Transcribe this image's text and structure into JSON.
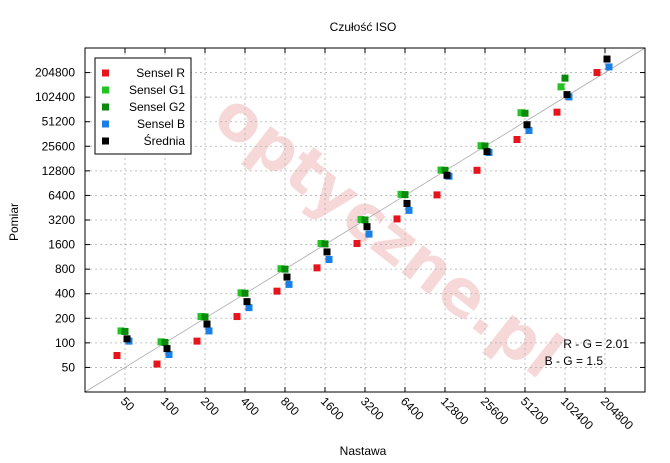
{
  "chart_data": {
    "type": "scatter",
    "title": "Czułość ISO",
    "xlabel": "Nastawa",
    "ylabel": "Pomiar",
    "x_ticks": [
      50,
      100,
      200,
      400,
      800,
      1600,
      3200,
      6400,
      12800,
      25600,
      51200,
      102400,
      204800
    ],
    "y_ticks": [
      50,
      100,
      200,
      400,
      800,
      1600,
      3200,
      6400,
      12800,
      25600,
      51200,
      102400,
      204800
    ],
    "scale": "log2",
    "xlim": [
      25,
      409600
    ],
    "ylim": [
      25,
      409600
    ],
    "grid": true,
    "legend_position": "top-left",
    "reference_line": "y = x",
    "series": [
      {
        "name": "Sensel R",
        "color": "#e8141b",
        "x": [
          50,
          100,
          200,
          400,
          800,
          1600,
          3200,
          6400,
          12800,
          25600,
          51200,
          102400,
          204800
        ],
        "y": [
          70,
          55,
          105,
          210,
          430,
          830,
          1650,
          3300,
          6500,
          13000,
          31000,
          67000,
          205000
        ]
      },
      {
        "name": "Sensel G1",
        "color": "#22c322",
        "x": [
          50,
          100,
          200,
          400,
          800,
          1600,
          3200,
          6400,
          12800,
          25600,
          51200,
          102400,
          204800
        ],
        "y": [
          140,
          103,
          210,
          410,
          810,
          1650,
          3250,
          6600,
          13100,
          26000,
          66000,
          137000,
          null
        ]
      },
      {
        "name": "Sensel G2",
        "color": "#0a8a0a",
        "x": [
          50,
          100,
          200,
          400,
          800,
          1600,
          3200,
          6400,
          12800,
          25600,
          51200,
          102400,
          204800
        ],
        "y": [
          138,
          101,
          208,
          405,
          800,
          1630,
          3200,
          6550,
          13000,
          25800,
          65000,
          175000,
          null
        ]
      },
      {
        "name": "Sensel B",
        "color": "#1a7fe6",
        "x": [
          50,
          100,
          200,
          400,
          800,
          1600,
          3200,
          6400,
          12800,
          25600,
          51200,
          102400,
          204800
        ],
        "y": [
          105,
          72,
          140,
          270,
          520,
          1050,
          2150,
          4200,
          11000,
          21500,
          40000,
          103000,
          240000
        ]
      },
      {
        "name": "Średnia",
        "color": "#000000",
        "x": [
          50,
          100,
          200,
          400,
          800,
          1600,
          3200,
          6400,
          12800,
          25600,
          51200,
          102400,
          204800
        ],
        "y": [
          112,
          85,
          170,
          320,
          640,
          1300,
          2650,
          5100,
          11300,
          22000,
          47000,
          110000,
          300000
        ]
      }
    ],
    "annotations": [
      "R - G = 2.01",
      "B - G = 1.5"
    ]
  }
}
